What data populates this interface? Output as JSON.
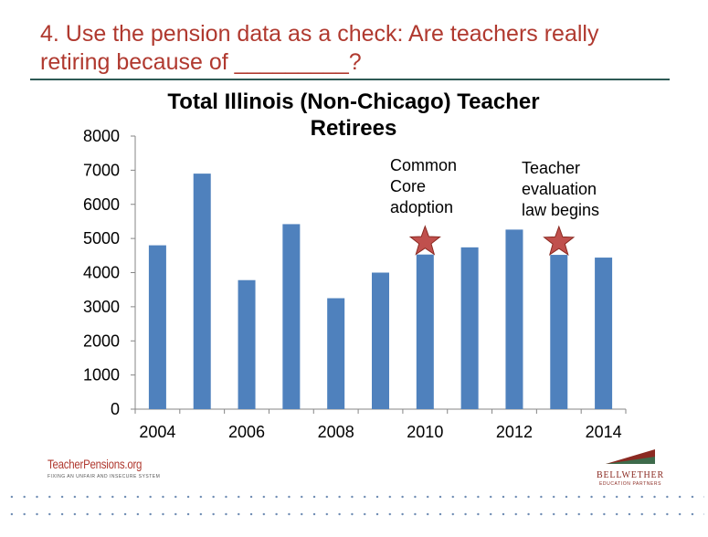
{
  "slide": {
    "title": "4. Use the pension data as a check: Are teachers really retiring because of _________?"
  },
  "chart_data": {
    "type": "bar",
    "title": "Total Illinois (Non-Chicago) Teacher Retirees",
    "categories": [
      "2004",
      "2005",
      "2006",
      "2007",
      "2008",
      "2009",
      "2010",
      "2011",
      "2012",
      "2013",
      "2014"
    ],
    "x_tick_labels": [
      "2004",
      "",
      "2006",
      "",
      "2008",
      "",
      "2010",
      "",
      "2012",
      "",
      "2014"
    ],
    "values": [
      4800,
      6900,
      3780,
      5420,
      3250,
      4000,
      4530,
      4740,
      5260,
      4520,
      4440
    ],
    "ylim": [
      0,
      8000
    ],
    "y_ticks": [
      0,
      1000,
      2000,
      3000,
      4000,
      5000,
      6000,
      7000,
      8000
    ],
    "xlabel": "",
    "ylabel": "",
    "grid": false,
    "legend": "none",
    "bar_color": "#4f81bd",
    "annotations": [
      {
        "category": "2010",
        "text": "Common Core adoption",
        "marker": "star",
        "color": "#c0504d"
      },
      {
        "category": "2013",
        "text": "Teacher evaluation law begins",
        "marker": "star",
        "color": "#c0504d"
      }
    ]
  },
  "footer": {
    "left_logo": "TeacherPensions.org",
    "left_tagline": "FIXING AN UNFAIR AND INSECURE SYSTEM",
    "right_logo": "BELLWETHER",
    "right_tagline": "EDUCATION PARTNERS"
  },
  "colors": {
    "title": "#b0392f",
    "rule": "#2e5a55",
    "bars": "#4f81bd",
    "stars": "#c0504d",
    "dots": "#6c8ab2"
  }
}
